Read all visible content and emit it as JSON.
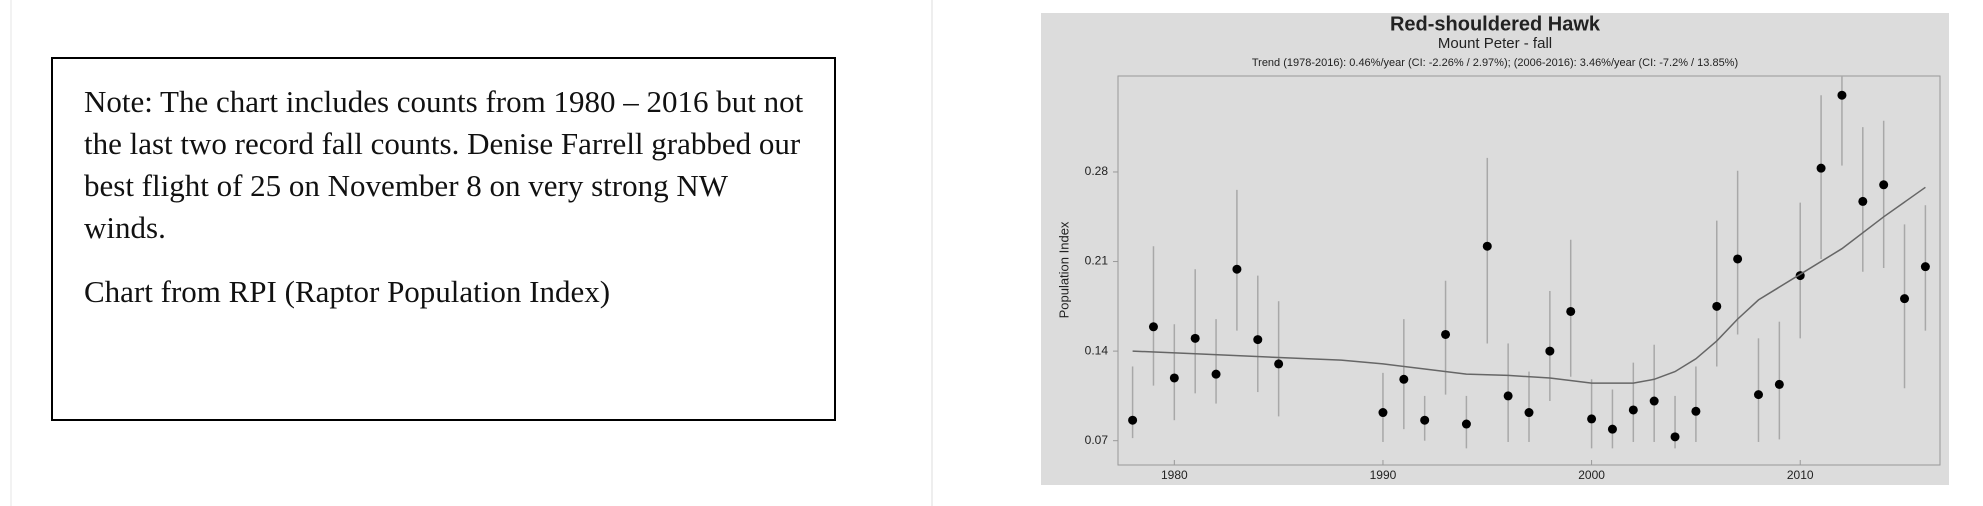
{
  "note": {
    "paragraphs": [
      "Note: The chart includes counts from 1980 – 2016 but not the last two record fall counts. Denise Farrell grabbed our best flight of 25 on November 8 on very strong NW winds.",
      "Chart from RPI (Raptor Population Index)"
    ]
  },
  "chart_data": {
    "type": "scatter",
    "title": "Red-shouldered Hawk",
    "subtitle": "Mount Peter - fall",
    "annotation": "Trend (1978-2016): 0.46%/year (CI: -2.26% / 2.97%); (2006-2016): 3.46%/year (CI: -7.2% / 13.85%)",
    "y_label": "Population Index",
    "xlim": [
      1977.3,
      2016.7
    ],
    "xticks": [
      1980,
      1990,
      2000,
      2010
    ],
    "ylim": [
      0.051,
      0.355
    ],
    "yticks": [
      0.07,
      0.14,
      0.21,
      0.28
    ],
    "grid": false,
    "series": [
      {
        "color": "#000000",
        "error_color": "#a8a8a8",
        "x": [
          1978,
          1979,
          1980,
          1981,
          1982,
          1983,
          1984,
          1985,
          1990,
          1991,
          1992,
          1993,
          1994,
          1995,
          1996,
          1997,
          1998,
          1999,
          2000,
          2001,
          2002,
          2003,
          2004,
          2005,
          2006,
          2007,
          2008,
          2009,
          2010,
          2011,
          2012,
          2013,
          2014,
          2015,
          2016
        ],
        "values": [
          0.086,
          0.159,
          0.119,
          0.15,
          0.122,
          0.204,
          0.149,
          0.13,
          0.092,
          0.118,
          0.086,
          0.153,
          0.083,
          0.222,
          0.105,
          0.092,
          0.14,
          0.171,
          0.087,
          0.079,
          0.094,
          0.101,
          0.073,
          0.093,
          0.175,
          0.212,
          0.106,
          0.114,
          0.199,
          0.283,
          0.34,
          0.257,
          0.27,
          0.181,
          0.206
        ],
        "upper": [
          0.128,
          0.222,
          0.161,
          0.204,
          0.165,
          0.266,
          0.199,
          0.179,
          0.123,
          0.165,
          0.105,
          0.195,
          0.105,
          0.291,
          0.146,
          0.124,
          0.187,
          0.227,
          0.118,
          0.11,
          0.131,
          0.145,
          0.105,
          0.128,
          0.242,
          0.281,
          0.15,
          0.163,
          0.256,
          0.34,
          0.355,
          0.315,
          0.32,
          0.239,
          0.254
        ],
        "lower": [
          0.072,
          0.113,
          0.086,
          0.107,
          0.099,
          0.156,
          0.108,
          0.089,
          0.069,
          0.079,
          0.07,
          0.106,
          0.064,
          0.146,
          0.069,
          0.069,
          0.101,
          0.12,
          0.064,
          0.064,
          0.069,
          0.069,
          0.064,
          0.069,
          0.128,
          0.153,
          0.069,
          0.071,
          0.15,
          0.212,
          0.285,
          0.202,
          0.205,
          0.111,
          0.156
        ]
      }
    ],
    "trend": {
      "color": "#666666",
      "x": [
        1978,
        1981,
        1985,
        1988,
        1990,
        1992,
        1994,
        1996,
        1998,
        2000,
        2002,
        2003,
        2004,
        2005,
        2006,
        2007,
        2008,
        2010,
        2012,
        2014,
        2016
      ],
      "values": [
        0.14,
        0.138,
        0.135,
        0.133,
        0.13,
        0.126,
        0.122,
        0.121,
        0.119,
        0.115,
        0.115,
        0.118,
        0.124,
        0.134,
        0.148,
        0.165,
        0.18,
        0.2,
        0.22,
        0.245,
        0.268
      ]
    }
  }
}
